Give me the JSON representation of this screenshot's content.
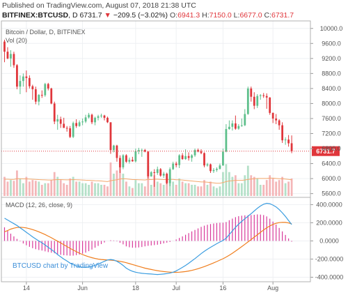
{
  "header": {
    "published": "Published on TradingView.com, August 07, 2018 21:38 UTC",
    "symbol": "BITFINEX:BTCUSD",
    "interval": "D",
    "last": "6731.7",
    "change": "−209.5 (−3.02%)",
    "o_label": "O:",
    "o_value": "6941.3",
    "h_label": "H:",
    "h_value": "7150.0",
    "l_label": "L:",
    "l_value": "6677.0",
    "c_label": "C:",
    "c_value": "6731.7"
  },
  "price_panel": {
    "title": "Bitcoin / Dollar, D, BITFINEX",
    "volume_label": "Vol (20)",
    "last_price_tag": "6731.7"
  },
  "macd_panel": {
    "legend": "MACD (12, 26, close, 9)",
    "watermark": "BTCUSD chart by TradingView"
  },
  "colors": {
    "up": "#5dbf8b",
    "down": "#e0363b",
    "vol_up": "#b4e0c8",
    "vol_down": "#f4b6b8",
    "macd_line": "#3b9de0",
    "signal_line": "#f07e1d",
    "histogram": "#d8389a",
    "grid": "#eef0f3",
    "border": "#b0b0b0"
  },
  "chart_data": {
    "type": "candlestick",
    "x_range": [
      "2018-05-06",
      "2018-08-13"
    ],
    "x_ticks": [
      {
        "date": "2018-05-14",
        "label": "14"
      },
      {
        "date": "2018-06-01",
        "label": "Jun"
      },
      {
        "date": "2018-06-18",
        "label": "18"
      },
      {
        "date": "2018-07-01",
        "label": "Jul"
      },
      {
        "date": "2018-07-16",
        "label": "16"
      },
      {
        "date": "2018-08-01",
        "label": "Aug"
      }
    ],
    "price_axis": {
      "range": [
        5500,
        10200
      ],
      "ticks": [
        5600,
        6000,
        6400,
        6800,
        7200,
        7600,
        8000,
        8400,
        8800,
        9200,
        9600,
        10000
      ],
      "tick_labels": [
        "5600.0",
        "6000.0",
        "6400.0",
        "6800.0",
        "7200.0",
        "7600.0",
        "8000.0",
        "8400.0",
        "8800.0",
        "9200.0",
        "9600.0",
        "10000.0"
      ]
    },
    "macd_axis": {
      "range": [
        -450,
        480
      ],
      "ticks": [
        -400,
        -200,
        0,
        200,
        400
      ],
      "tick_labels": [
        "-400.0000",
        "-200.0000",
        "0.0000",
        "200.0000",
        "400.0000"
      ]
    },
    "last_price": 6731.7,
    "candles": [
      {
        "date": "2018-05-07",
        "o": 9650,
        "h": 9700,
        "l": 9100,
        "c": 9380,
        "v": 1.2
      },
      {
        "date": "2018-05-08",
        "o": 9380,
        "h": 9500,
        "l": 9180,
        "c": 9200,
        "v": 0.9
      },
      {
        "date": "2018-05-09",
        "o": 9200,
        "h": 9420,
        "l": 8980,
        "c": 9320,
        "v": 1.0
      },
      {
        "date": "2018-05-10",
        "o": 9320,
        "h": 9380,
        "l": 8950,
        "c": 9020,
        "v": 0.95
      },
      {
        "date": "2018-05-11",
        "o": 9020,
        "h": 9050,
        "l": 8380,
        "c": 8450,
        "v": 1.6
      },
      {
        "date": "2018-05-12",
        "o": 8450,
        "h": 8750,
        "l": 8250,
        "c": 8600,
        "v": 1.1
      },
      {
        "date": "2018-05-13",
        "o": 8600,
        "h": 8800,
        "l": 8450,
        "c": 8720,
        "v": 0.8
      },
      {
        "date": "2018-05-14",
        "o": 8720,
        "h": 8880,
        "l": 8300,
        "c": 8680,
        "v": 1.2
      },
      {
        "date": "2018-05-15",
        "o": 8680,
        "h": 8750,
        "l": 8400,
        "c": 8460,
        "v": 0.9
      },
      {
        "date": "2018-05-16",
        "o": 8460,
        "h": 8500,
        "l": 8100,
        "c": 8380,
        "v": 1.0
      },
      {
        "date": "2018-05-17",
        "o": 8380,
        "h": 8450,
        "l": 7980,
        "c": 8050,
        "v": 0.95
      },
      {
        "date": "2018-05-18",
        "o": 8050,
        "h": 8250,
        "l": 7950,
        "c": 8230,
        "v": 0.9
      },
      {
        "date": "2018-05-19",
        "o": 8230,
        "h": 8350,
        "l": 8150,
        "c": 8220,
        "v": 0.7
      },
      {
        "date": "2018-05-20",
        "o": 8220,
        "h": 8550,
        "l": 8180,
        "c": 8520,
        "v": 0.8
      },
      {
        "date": "2018-05-21",
        "o": 8520,
        "h": 8550,
        "l": 8350,
        "c": 8400,
        "v": 0.8
      },
      {
        "date": "2018-05-22",
        "o": 8400,
        "h": 8420,
        "l": 7980,
        "c": 8000,
        "v": 1.0
      },
      {
        "date": "2018-05-23",
        "o": 8000,
        "h": 8050,
        "l": 7450,
        "c": 7520,
        "v": 1.5
      },
      {
        "date": "2018-05-24",
        "o": 7520,
        "h": 7700,
        "l": 7300,
        "c": 7580,
        "v": 1.2
      },
      {
        "date": "2018-05-25",
        "o": 7580,
        "h": 7650,
        "l": 7350,
        "c": 7460,
        "v": 1.0
      },
      {
        "date": "2018-05-26",
        "o": 7460,
        "h": 7620,
        "l": 7350,
        "c": 7350,
        "v": 0.8
      },
      {
        "date": "2018-05-27",
        "o": 7350,
        "h": 7400,
        "l": 7250,
        "c": 7340,
        "v": 0.7
      },
      {
        "date": "2018-05-28",
        "o": 7340,
        "h": 7400,
        "l": 7080,
        "c": 7110,
        "v": 1.1
      },
      {
        "date": "2018-05-29",
        "o": 7110,
        "h": 7520,
        "l": 7080,
        "c": 7480,
        "v": 1.2
      },
      {
        "date": "2018-05-30",
        "o": 7480,
        "h": 7580,
        "l": 7350,
        "c": 7400,
        "v": 0.9
      },
      {
        "date": "2018-05-31",
        "o": 7400,
        "h": 7550,
        "l": 7380,
        "c": 7500,
        "v": 0.9
      },
      {
        "date": "2018-06-01",
        "o": 7500,
        "h": 7600,
        "l": 7420,
        "c": 7520,
        "v": 0.8
      },
      {
        "date": "2018-06-02",
        "o": 7520,
        "h": 7700,
        "l": 7480,
        "c": 7630,
        "v": 0.8
      },
      {
        "date": "2018-06-03",
        "o": 7630,
        "h": 7750,
        "l": 7600,
        "c": 7700,
        "v": 0.7
      },
      {
        "date": "2018-06-04",
        "o": 7700,
        "h": 7730,
        "l": 7450,
        "c": 7500,
        "v": 0.9
      },
      {
        "date": "2018-06-05",
        "o": 7500,
        "h": 7650,
        "l": 7420,
        "c": 7620,
        "v": 0.8
      },
      {
        "date": "2018-06-06",
        "o": 7620,
        "h": 7700,
        "l": 7550,
        "c": 7660,
        "v": 0.8
      },
      {
        "date": "2018-06-07",
        "o": 7660,
        "h": 7730,
        "l": 7620,
        "c": 7680,
        "v": 0.7
      },
      {
        "date": "2018-06-08",
        "o": 7680,
        "h": 7700,
        "l": 7550,
        "c": 7620,
        "v": 0.7
      },
      {
        "date": "2018-06-09",
        "o": 7620,
        "h": 7650,
        "l": 7480,
        "c": 7500,
        "v": 0.6
      },
      {
        "date": "2018-06-10",
        "o": 7500,
        "h": 7500,
        "l": 6660,
        "c": 6760,
        "v": 2.1
      },
      {
        "date": "2018-06-11",
        "o": 6760,
        "h": 6900,
        "l": 6700,
        "c": 6880,
        "v": 1.4
      },
      {
        "date": "2018-06-12",
        "o": 6880,
        "h": 6900,
        "l": 6450,
        "c": 6550,
        "v": 1.6
      },
      {
        "date": "2018-06-13",
        "o": 6550,
        "h": 6620,
        "l": 6150,
        "c": 6300,
        "v": 1.8
      },
      {
        "date": "2018-06-14",
        "o": 6300,
        "h": 6650,
        "l": 6250,
        "c": 6620,
        "v": 1.4
      },
      {
        "date": "2018-06-15",
        "o": 6620,
        "h": 6650,
        "l": 6420,
        "c": 6450,
        "v": 0.9
      },
      {
        "date": "2018-06-16",
        "o": 6450,
        "h": 6560,
        "l": 6400,
        "c": 6500,
        "v": 0.6
      },
      {
        "date": "2018-06-17",
        "o": 6500,
        "h": 6580,
        "l": 6450,
        "c": 6460,
        "v": 0.5
      },
      {
        "date": "2018-06-18",
        "o": 6460,
        "h": 6800,
        "l": 6430,
        "c": 6730,
        "v": 1.0
      },
      {
        "date": "2018-06-19",
        "o": 6730,
        "h": 6820,
        "l": 6650,
        "c": 6760,
        "v": 0.8
      },
      {
        "date": "2018-06-20",
        "o": 6760,
        "h": 6800,
        "l": 6580,
        "c": 6760,
        "v": 0.8
      },
      {
        "date": "2018-06-21",
        "o": 6760,
        "h": 6790,
        "l": 6700,
        "c": 6720,
        "v": 0.6
      },
      {
        "date": "2018-06-22",
        "o": 6720,
        "h": 6730,
        "l": 6000,
        "c": 6060,
        "v": 1.9
      },
      {
        "date": "2018-06-23",
        "o": 6060,
        "h": 6200,
        "l": 6050,
        "c": 6170,
        "v": 0.7
      },
      {
        "date": "2018-06-24",
        "o": 6170,
        "h": 6250,
        "l": 5780,
        "c": 6150,
        "v": 1.3
      },
      {
        "date": "2018-06-25",
        "o": 6150,
        "h": 6320,
        "l": 6100,
        "c": 6250,
        "v": 0.9
      },
      {
        "date": "2018-06-26",
        "o": 6250,
        "h": 6280,
        "l": 6050,
        "c": 6080,
        "v": 0.8
      },
      {
        "date": "2018-06-27",
        "o": 6080,
        "h": 6180,
        "l": 6020,
        "c": 6130,
        "v": 0.7
      },
      {
        "date": "2018-06-28",
        "o": 6130,
        "h": 6160,
        "l": 5850,
        "c": 5880,
        "v": 1.0
      },
      {
        "date": "2018-06-29",
        "o": 5880,
        "h": 6300,
        "l": 5800,
        "c": 6250,
        "v": 1.2
      },
      {
        "date": "2018-06-30",
        "o": 6250,
        "h": 6450,
        "l": 6230,
        "c": 6400,
        "v": 0.9
      },
      {
        "date": "2018-07-01",
        "o": 6400,
        "h": 6450,
        "l": 6300,
        "c": 6360,
        "v": 0.7
      },
      {
        "date": "2018-07-02",
        "o": 6360,
        "h": 6650,
        "l": 6280,
        "c": 6620,
        "v": 1.1
      },
      {
        "date": "2018-07-03",
        "o": 6620,
        "h": 6680,
        "l": 6500,
        "c": 6520,
        "v": 0.9
      },
      {
        "date": "2018-07-04",
        "o": 6520,
        "h": 6780,
        "l": 6500,
        "c": 6600,
        "v": 0.8
      },
      {
        "date": "2018-07-05",
        "o": 6600,
        "h": 6700,
        "l": 6480,
        "c": 6550,
        "v": 0.8
      },
      {
        "date": "2018-07-06",
        "o": 6550,
        "h": 6650,
        "l": 6450,
        "c": 6620,
        "v": 0.7
      },
      {
        "date": "2018-07-07",
        "o": 6620,
        "h": 6800,
        "l": 6580,
        "c": 6760,
        "v": 0.7
      },
      {
        "date": "2018-07-08",
        "o": 6760,
        "h": 6800,
        "l": 6700,
        "c": 6720,
        "v": 0.6
      },
      {
        "date": "2018-07-09",
        "o": 6720,
        "h": 6780,
        "l": 6650,
        "c": 6680,
        "v": 0.6
      },
      {
        "date": "2018-07-10",
        "o": 6680,
        "h": 6700,
        "l": 6300,
        "c": 6350,
        "v": 1.0
      },
      {
        "date": "2018-07-11",
        "o": 6350,
        "h": 6420,
        "l": 6320,
        "c": 6380,
        "v": 0.7
      },
      {
        "date": "2018-07-12",
        "o": 6380,
        "h": 6400,
        "l": 6150,
        "c": 6200,
        "v": 0.9
      },
      {
        "date": "2018-07-13",
        "o": 6200,
        "h": 6280,
        "l": 6150,
        "c": 6230,
        "v": 0.6
      },
      {
        "date": "2018-07-14",
        "o": 6230,
        "h": 6300,
        "l": 6180,
        "c": 6260,
        "v": 0.5
      },
      {
        "date": "2018-07-15",
        "o": 6260,
        "h": 6400,
        "l": 6240,
        "c": 6350,
        "v": 0.6
      },
      {
        "date": "2018-07-16",
        "o": 6350,
        "h": 6800,
        "l": 6340,
        "c": 6720,
        "v": 1.5
      },
      {
        "date": "2018-07-17",
        "o": 6720,
        "h": 7450,
        "l": 6700,
        "c": 7320,
        "v": 2.0
      },
      {
        "date": "2018-07-18",
        "o": 7320,
        "h": 7550,
        "l": 7300,
        "c": 7380,
        "v": 1.5
      },
      {
        "date": "2018-07-19",
        "o": 7380,
        "h": 7550,
        "l": 7280,
        "c": 7470,
        "v": 1.2
      },
      {
        "date": "2018-07-20",
        "o": 7470,
        "h": 7680,
        "l": 7300,
        "c": 7330,
        "v": 1.3
      },
      {
        "date": "2018-07-21",
        "o": 7330,
        "h": 7450,
        "l": 7300,
        "c": 7400,
        "v": 0.8
      },
      {
        "date": "2018-07-22",
        "o": 7400,
        "h": 7600,
        "l": 7380,
        "c": 7420,
        "v": 0.8
      },
      {
        "date": "2018-07-23",
        "o": 7420,
        "h": 7850,
        "l": 7400,
        "c": 7720,
        "v": 1.3
      },
      {
        "date": "2018-07-24",
        "o": 7720,
        "h": 8450,
        "l": 7700,
        "c": 8400,
        "v": 1.9
      },
      {
        "date": "2018-07-25",
        "o": 8400,
        "h": 8450,
        "l": 8050,
        "c": 8180,
        "v": 1.3
      },
      {
        "date": "2018-07-26",
        "o": 8180,
        "h": 8300,
        "l": 7850,
        "c": 7940,
        "v": 1.2
      },
      {
        "date": "2018-07-27",
        "o": 7940,
        "h": 8250,
        "l": 7880,
        "c": 8200,
        "v": 1.1
      },
      {
        "date": "2018-07-28",
        "o": 8200,
        "h": 8250,
        "l": 8100,
        "c": 8220,
        "v": 0.7
      },
      {
        "date": "2018-07-29",
        "o": 8220,
        "h": 8280,
        "l": 8150,
        "c": 8200,
        "v": 0.7
      },
      {
        "date": "2018-07-30",
        "o": 8200,
        "h": 8270,
        "l": 7860,
        "c": 8160,
        "v": 1.0
      },
      {
        "date": "2018-07-31",
        "o": 8160,
        "h": 8170,
        "l": 7700,
        "c": 7750,
        "v": 1.3
      },
      {
        "date": "2018-08-01",
        "o": 7750,
        "h": 7760,
        "l": 7480,
        "c": 7600,
        "v": 1.1
      },
      {
        "date": "2018-08-02",
        "o": 7600,
        "h": 7720,
        "l": 7450,
        "c": 7550,
        "v": 0.9
      },
      {
        "date": "2018-08-03",
        "o": 7550,
        "h": 7580,
        "l": 7300,
        "c": 7420,
        "v": 1.0
      },
      {
        "date": "2018-08-04",
        "o": 7420,
        "h": 7500,
        "l": 6950,
        "c": 7020,
        "v": 1.2
      },
      {
        "date": "2018-08-05",
        "o": 7020,
        "h": 7100,
        "l": 6900,
        "c": 7040,
        "v": 0.8
      },
      {
        "date": "2018-08-06",
        "o": 7040,
        "h": 7160,
        "l": 6850,
        "c": 6940,
        "v": 0.9
      },
      {
        "date": "2018-08-07",
        "o": 6941.3,
        "h": 7150,
        "l": 6677,
        "c": 6731.7,
        "v": 1.1
      }
    ],
    "volume_ma": [
      1.05,
      1.05,
      1.04,
      1.04,
      1.08,
      1.08,
      1.07,
      1.07,
      1.06,
      1.05,
      1.04,
      1.03,
      1.02,
      1.01,
      1.0,
      1.0,
      1.02,
      1.03,
      1.03,
      1.02,
      1.01,
      1.02,
      1.03,
      1.02,
      1.01,
      1.0,
      0.99,
      0.98,
      0.97,
      0.96,
      0.95,
      0.94,
      0.92,
      0.9,
      0.96,
      0.99,
      1.02,
      1.06,
      1.08,
      1.07,
      1.05,
      1.03,
      1.03,
      1.02,
      1.01,
      1.0,
      1.04,
      1.03,
      1.05,
      1.05,
      1.04,
      1.03,
      1.03,
      1.04,
      1.04,
      1.02,
      1.02,
      1.0,
      0.98,
      0.96,
      0.94,
      0.92,
      0.9,
      0.88,
      0.88,
      0.86,
      0.84,
      0.82,
      0.8,
      0.8,
      0.84,
      0.9,
      0.94,
      0.96,
      0.98,
      0.98,
      0.98,
      1.0,
      1.04,
      1.06,
      1.08,
      1.1,
      1.1,
      1.1,
      1.1,
      1.12,
      1.12,
      1.1,
      1.08,
      1.08,
      1.06,
      1.04,
      1.02
    ],
    "macd_series": [
      {
        "name": "MACD",
        "values": [
          250,
          230,
          210,
          190,
          170,
          145,
          120,
          95,
          70,
          45,
          22,
          0,
          -20,
          -45,
          -70,
          -95,
          -120,
          -150,
          -175,
          -200,
          -222,
          -245,
          -262,
          -275,
          -285,
          -290,
          -292,
          -288,
          -280,
          -268,
          -255,
          -240,
          -225,
          -210,
          -205,
          -210,
          -225,
          -245,
          -270,
          -300,
          -320,
          -335,
          -345,
          -352,
          -357,
          -360,
          -362,
          -365,
          -368,
          -370,
          -368,
          -365,
          -360,
          -355,
          -345,
          -330,
          -312,
          -292,
          -270,
          -246,
          -220,
          -195,
          -168,
          -140,
          -115,
          -92,
          -70,
          -50,
          -30,
          -12,
          5,
          30,
          70,
          110,
          150,
          185,
          215,
          245,
          272,
          300,
          330,
          360,
          385,
          405,
          415,
          410,
          395,
          375,
          345,
          310,
          270,
          225,
          180
        ]
      },
      {
        "name": "Signal",
        "values": [
          100,
          115,
          130,
          140,
          148,
          150,
          148,
          143,
          135,
          125,
          113,
          100,
          86,
          70,
          53,
          35,
          16,
          -3,
          -22,
          -42,
          -62,
          -82,
          -100,
          -118,
          -135,
          -150,
          -163,
          -175,
          -185,
          -193,
          -200,
          -205,
          -208,
          -210,
          -212,
          -215,
          -220,
          -225,
          -232,
          -240,
          -250,
          -260,
          -270,
          -280,
          -290,
          -300,
          -308,
          -315,
          -322,
          -328,
          -333,
          -338,
          -341,
          -344,
          -346,
          -346,
          -345,
          -342,
          -338,
          -332,
          -325,
          -316,
          -306,
          -295,
          -283,
          -270,
          -256,
          -242,
          -227,
          -212,
          -196,
          -178,
          -158,
          -136,
          -112,
          -88,
          -63,
          -37,
          -11,
          15,
          42,
          68,
          95,
          120,
          145,
          165,
          182,
          195,
          202,
          205,
          204,
          198,
          188
        ]
      }
    ]
  }
}
